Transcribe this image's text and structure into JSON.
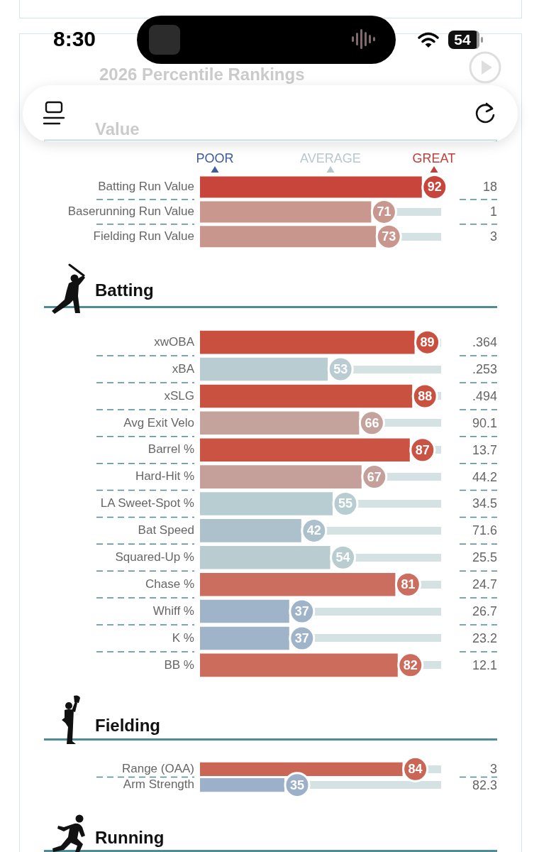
{
  "chart_data": [
    {
      "type": "other",
      "annotations": [
        "8:30",
        "54"
      ]
    },
    {
      "type": "bar",
      "orientation": "horizontal",
      "title": "2026 Percentile Rankings",
      "subtitle": "Value",
      "categories": [
        "Batting Run Value",
        "Baserunning Run Value",
        "Fielding Run Value"
      ],
      "values": [
        92,
        71,
        73
      ],
      "colors": [
        "#c8453b",
        "#c9978e",
        "#c9968d"
      ],
      "xlim": [
        0,
        100
      ],
      "grid": "y",
      "tick_labels": "y",
      "data_labels": true,
      "annotations": [
        "POOR",
        "AVERAGE",
        "GREAT",
        "18",
        "1",
        "3"
      ]
    },
    {
      "type": "bar",
      "orientation": "horizontal",
      "title": "Batting",
      "categories": [
        "xwOBA",
        "xBA",
        "xSLG",
        "Avg Exit Velo",
        "Barrel %",
        "Hard-Hit %",
        "LA Sweet-Spot %",
        "Bat Speed",
        "Squared-Up %",
        "Chase %",
        "Whiff %",
        "K %",
        "BB %"
      ],
      "values": [
        89,
        53,
        88,
        66,
        87,
        67,
        55,
        42,
        54,
        81,
        37,
        37,
        82
      ],
      "colors": [
        "#c9503f",
        "#b8ccd1",
        "#c9513f",
        "#c4a39d",
        "#ca5343",
        "#c5a09a",
        "#b8cdd1",
        "#adc1cc",
        "#b9cdd1",
        "#cc6e5f",
        "#9fb4c9",
        "#9fb4c9",
        "#cc6c5d"
      ],
      "xlim": [
        0,
        100
      ],
      "grid": "y",
      "tick_labels": "y",
      "data_labels": true,
      "annotations": [
        ".364",
        ".253",
        ".494",
        "90.1",
        "13.7",
        "44.2",
        "34.5",
        "71.6",
        "25.5",
        "24.7",
        "26.7",
        "23.2",
        "12.1"
      ]
    },
    {
      "type": "bar",
      "orientation": "horizontal",
      "title": "Fielding",
      "categories": [
        "Range (OAA)",
        "Arm Strength"
      ],
      "values": [
        84,
        35
      ],
      "colors": [
        "#ca6656",
        "#9cb1c9"
      ],
      "xlim": [
        0,
        100
      ],
      "grid": "y",
      "tick_labels": "y",
      "data_labels": true,
      "annotations": [
        "3",
        "82.3"
      ]
    },
    {
      "type": "other",
      "title": "Running"
    }
  ]
}
